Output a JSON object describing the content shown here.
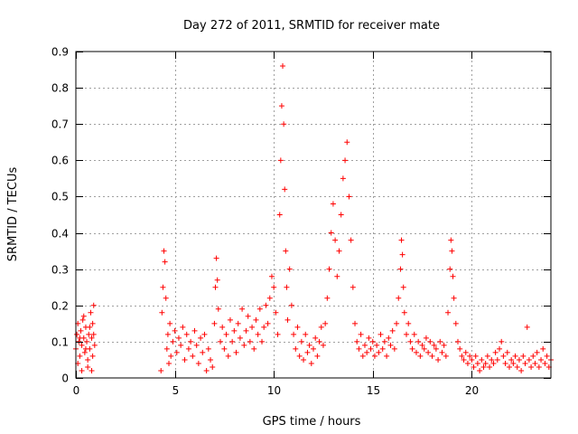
{
  "chart_data": {
    "type": "scatter",
    "title": "Day 272 of 2011, SRMTID for receiver mate",
    "xlabel": "GPS time / hours",
    "ylabel": "SRMTID / TECUs",
    "xlim": [
      0,
      24
    ],
    "ylim": [
      0,
      0.9
    ],
    "xticks": [
      0,
      5,
      10,
      15,
      20
    ],
    "xtick_labels": [
      "0",
      "5",
      "10",
      "15",
      "20"
    ],
    "yticks": [
      0,
      0.1,
      0.2,
      0.3,
      0.4,
      0.5,
      0.6,
      0.7,
      0.8,
      0.9
    ],
    "ytick_labels": [
      "0",
      "0.1",
      "0.2",
      "0.3",
      "0.4",
      "0.5",
      "0.6",
      "0.7",
      "0.8",
      "0.9"
    ],
    "grid": true,
    "marker": "+",
    "color": "#ff0000",
    "series": [
      {
        "name": "SRMTID",
        "points": [
          [
            0.0,
            0.08
          ],
          [
            0.05,
            0.12
          ],
          [
            0.1,
            0.15
          ],
          [
            0.15,
            0.1
          ],
          [
            0.2,
            0.06
          ],
          [
            0.25,
            0.13
          ],
          [
            0.3,
            0.09
          ],
          [
            0.35,
            0.16
          ],
          [
            0.4,
            0.11
          ],
          [
            0.45,
            0.07
          ],
          [
            0.5,
            0.14
          ],
          [
            0.55,
            0.1
          ],
          [
            0.6,
            0.05
          ],
          [
            0.65,
            0.12
          ],
          [
            0.7,
            0.08
          ],
          [
            0.75,
            0.18
          ],
          [
            0.8,
            0.11
          ],
          [
            0.85,
            0.06
          ],
          [
            0.9,
            0.2
          ],
          [
            0.95,
            0.09
          ],
          [
            0.1,
            0.04
          ],
          [
            0.3,
            0.02
          ],
          [
            0.6,
            0.03
          ],
          [
            0.8,
            0.02
          ],
          [
            0.7,
            0.14
          ],
          [
            0.4,
            0.17
          ],
          [
            0.2,
            0.11
          ],
          [
            0.5,
            0.08
          ],
          [
            0.9,
            0.12
          ],
          [
            0.85,
            0.15
          ],
          [
            4.3,
            0.02
          ],
          [
            4.35,
            0.18
          ],
          [
            4.4,
            0.25
          ],
          [
            4.45,
            0.35
          ],
          [
            4.5,
            0.32
          ],
          [
            4.55,
            0.22
          ],
          [
            4.6,
            0.08
          ],
          [
            4.65,
            0.12
          ],
          [
            4.7,
            0.04
          ],
          [
            4.75,
            0.15
          ],
          [
            4.8,
            0.06
          ],
          [
            4.9,
            0.1
          ],
          [
            5.0,
            0.13
          ],
          [
            5.1,
            0.07
          ],
          [
            5.2,
            0.11
          ],
          [
            5.3,
            0.09
          ],
          [
            5.4,
            0.14
          ],
          [
            5.5,
            0.05
          ],
          [
            5.6,
            0.12
          ],
          [
            5.7,
            0.08
          ],
          [
            5.8,
            0.1
          ],
          [
            5.9,
            0.06
          ],
          [
            6.0,
            0.13
          ],
          [
            6.1,
            0.09
          ],
          [
            6.2,
            0.04
          ],
          [
            6.3,
            0.11
          ],
          [
            6.4,
            0.07
          ],
          [
            6.5,
            0.12
          ],
          [
            6.6,
            0.02
          ],
          [
            6.7,
            0.08
          ],
          [
            6.8,
            0.05
          ],
          [
            6.9,
            0.03
          ],
          [
            7.0,
            0.15
          ],
          [
            7.05,
            0.25
          ],
          [
            7.1,
            0.33
          ],
          [
            7.15,
            0.27
          ],
          [
            7.2,
            0.19
          ],
          [
            7.3,
            0.1
          ],
          [
            7.4,
            0.14
          ],
          [
            7.5,
            0.08
          ],
          [
            7.6,
            0.12
          ],
          [
            7.7,
            0.06
          ],
          [
            7.8,
            0.16
          ],
          [
            7.9,
            0.1
          ],
          [
            8.0,
            0.13
          ],
          [
            8.1,
            0.07
          ],
          [
            8.2,
            0.15
          ],
          [
            8.3,
            0.11
          ],
          [
            8.4,
            0.19
          ],
          [
            8.5,
            0.09
          ],
          [
            8.6,
            0.13
          ],
          [
            8.7,
            0.17
          ],
          [
            8.8,
            0.1
          ],
          [
            8.9,
            0.14
          ],
          [
            9.0,
            0.08
          ],
          [
            9.1,
            0.16
          ],
          [
            9.2,
            0.12
          ],
          [
            9.3,
            0.19
          ],
          [
            9.4,
            0.1
          ],
          [
            9.5,
            0.14
          ],
          [
            9.6,
            0.2
          ],
          [
            9.7,
            0.15
          ],
          [
            9.8,
            0.22
          ],
          [
            9.9,
            0.28
          ],
          [
            10.0,
            0.25
          ],
          [
            10.1,
            0.18
          ],
          [
            10.2,
            0.12
          ],
          [
            10.3,
            0.45
          ],
          [
            10.35,
            0.6
          ],
          [
            10.4,
            0.75
          ],
          [
            10.45,
            0.86
          ],
          [
            10.5,
            0.7
          ],
          [
            10.55,
            0.52
          ],
          [
            10.6,
            0.35
          ],
          [
            10.65,
            0.25
          ],
          [
            10.7,
            0.16
          ],
          [
            10.8,
            0.3
          ],
          [
            10.9,
            0.2
          ],
          [
            11.0,
            0.12
          ],
          [
            11.1,
            0.08
          ],
          [
            11.2,
            0.14
          ],
          [
            11.3,
            0.06
          ],
          [
            11.4,
            0.1
          ],
          [
            11.5,
            0.05
          ],
          [
            11.6,
            0.12
          ],
          [
            11.7,
            0.07
          ],
          [
            11.8,
            0.09
          ],
          [
            11.9,
            0.04
          ],
          [
            12.0,
            0.08
          ],
          [
            12.1,
            0.11
          ],
          [
            12.2,
            0.06
          ],
          [
            12.3,
            0.1
          ],
          [
            12.4,
            0.14
          ],
          [
            12.5,
            0.09
          ],
          [
            12.6,
            0.15
          ],
          [
            12.7,
            0.22
          ],
          [
            12.8,
            0.3
          ],
          [
            12.9,
            0.4
          ],
          [
            13.0,
            0.48
          ],
          [
            13.1,
            0.38
          ],
          [
            13.2,
            0.28
          ],
          [
            13.3,
            0.35
          ],
          [
            13.4,
            0.45
          ],
          [
            13.5,
            0.55
          ],
          [
            13.6,
            0.6
          ],
          [
            13.7,
            0.65
          ],
          [
            13.8,
            0.5
          ],
          [
            13.9,
            0.38
          ],
          [
            14.0,
            0.25
          ],
          [
            14.1,
            0.15
          ],
          [
            14.2,
            0.1
          ],
          [
            14.3,
            0.08
          ],
          [
            14.4,
            0.12
          ],
          [
            14.5,
            0.06
          ],
          [
            14.6,
            0.09
          ],
          [
            14.7,
            0.07
          ],
          [
            14.8,
            0.11
          ],
          [
            14.9,
            0.08
          ],
          [
            15.0,
            0.1
          ],
          [
            15.1,
            0.06
          ],
          [
            15.2,
            0.09
          ],
          [
            15.3,
            0.07
          ],
          [
            15.4,
            0.12
          ],
          [
            15.5,
            0.08
          ],
          [
            15.6,
            0.1
          ],
          [
            15.7,
            0.06
          ],
          [
            15.8,
            0.11
          ],
          [
            15.9,
            0.09
          ],
          [
            16.0,
            0.13
          ],
          [
            16.1,
            0.08
          ],
          [
            16.2,
            0.15
          ],
          [
            16.3,
            0.22
          ],
          [
            16.4,
            0.3
          ],
          [
            16.45,
            0.38
          ],
          [
            16.5,
            0.34
          ],
          [
            16.55,
            0.25
          ],
          [
            16.6,
            0.18
          ],
          [
            16.7,
            0.12
          ],
          [
            16.8,
            0.15
          ],
          [
            16.9,
            0.1
          ],
          [
            17.0,
            0.08
          ],
          [
            17.1,
            0.12
          ],
          [
            17.2,
            0.07
          ],
          [
            17.3,
            0.1
          ],
          [
            17.4,
            0.06
          ],
          [
            17.5,
            0.09
          ],
          [
            17.6,
            0.08
          ],
          [
            17.7,
            0.11
          ],
          [
            17.8,
            0.07
          ],
          [
            17.9,
            0.1
          ],
          [
            18.0,
            0.06
          ],
          [
            18.1,
            0.09
          ],
          [
            18.2,
            0.08
          ],
          [
            18.3,
            0.05
          ],
          [
            18.4,
            0.1
          ],
          [
            18.5,
            0.07
          ],
          [
            18.6,
            0.09
          ],
          [
            18.7,
            0.06
          ],
          [
            18.8,
            0.18
          ],
          [
            18.9,
            0.3
          ],
          [
            18.95,
            0.38
          ],
          [
            19.0,
            0.35
          ],
          [
            19.05,
            0.28
          ],
          [
            19.1,
            0.22
          ],
          [
            19.2,
            0.15
          ],
          [
            19.3,
            0.1
          ],
          [
            19.4,
            0.08
          ],
          [
            19.5,
            0.06
          ],
          [
            19.6,
            0.05
          ],
          [
            19.7,
            0.07
          ],
          [
            19.8,
            0.04
          ],
          [
            19.9,
            0.06
          ],
          [
            20.0,
            0.05
          ],
          [
            20.1,
            0.03
          ],
          [
            20.2,
            0.06
          ],
          [
            20.3,
            0.04
          ],
          [
            20.4,
            0.02
          ],
          [
            20.5,
            0.05
          ],
          [
            20.6,
            0.03
          ],
          [
            20.7,
            0.04
          ],
          [
            20.8,
            0.06
          ],
          [
            20.9,
            0.03
          ],
          [
            21.0,
            0.05
          ],
          [
            21.1,
            0.04
          ],
          [
            21.2,
            0.07
          ],
          [
            21.3,
            0.05
          ],
          [
            21.4,
            0.08
          ],
          [
            21.5,
            0.1
          ],
          [
            21.6,
            0.06
          ],
          [
            21.7,
            0.04
          ],
          [
            21.8,
            0.07
          ],
          [
            21.9,
            0.03
          ],
          [
            22.0,
            0.05
          ],
          [
            22.1,
            0.04
          ],
          [
            22.2,
            0.06
          ],
          [
            22.3,
            0.03
          ],
          [
            22.4,
            0.05
          ],
          [
            22.5,
            0.02
          ],
          [
            22.6,
            0.06
          ],
          [
            22.7,
            0.04
          ],
          [
            22.8,
            0.14
          ],
          [
            22.9,
            0.05
          ],
          [
            23.0,
            0.03
          ],
          [
            23.1,
            0.06
          ],
          [
            23.2,
            0.04
          ],
          [
            23.3,
            0.07
          ],
          [
            23.4,
            0.03
          ],
          [
            23.5,
            0.05
          ],
          [
            23.6,
            0.08
          ],
          [
            23.7,
            0.04
          ],
          [
            23.8,
            0.06
          ],
          [
            23.9,
            0.03
          ],
          [
            24.0,
            0.05
          ]
        ]
      }
    ]
  }
}
